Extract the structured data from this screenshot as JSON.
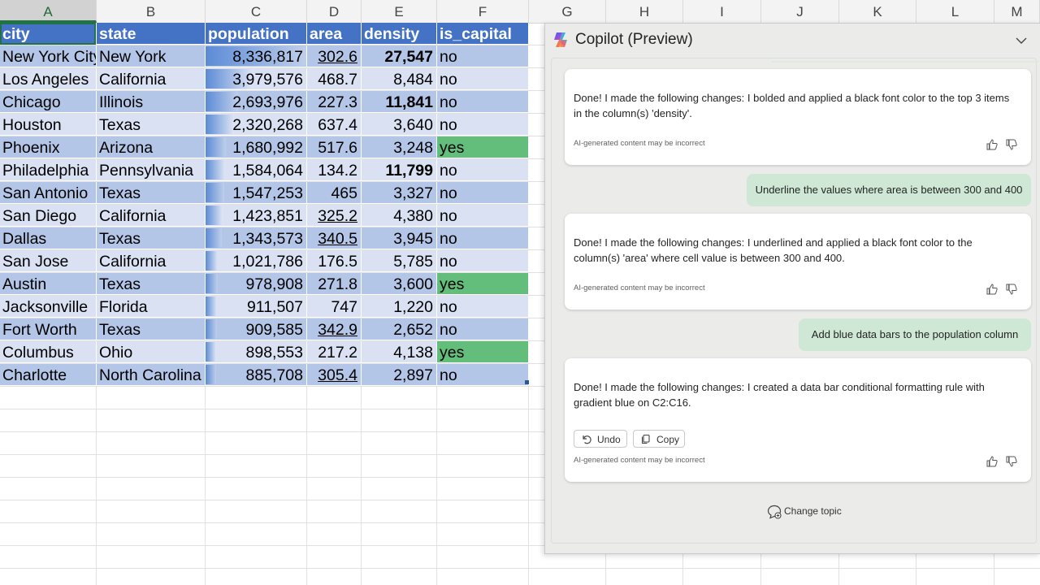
{
  "sheet": {
    "columns": [
      "A",
      "B",
      "C",
      "D",
      "E",
      "F",
      "G",
      "H",
      "I",
      "J",
      "K",
      "L",
      "M"
    ],
    "selected_column": "A",
    "headers": [
      "city",
      "state",
      "population",
      "area",
      "density",
      "is_capital"
    ],
    "rows": [
      {
        "city": "New York City",
        "state": "New York",
        "population": "8,336,817",
        "pop_value": 8336817,
        "area": "302.6",
        "density": "27,547",
        "is_capital": "no"
      },
      {
        "city": "Los Angeles",
        "state": "California",
        "population": "3,979,576",
        "pop_value": 3979576,
        "area": "468.7",
        "density": "8,484",
        "is_capital": "no"
      },
      {
        "city": "Chicago",
        "state": "Illinois",
        "population": "2,693,976",
        "pop_value": 2693976,
        "area": "227.3",
        "density": "11,841",
        "is_capital": "no"
      },
      {
        "city": "Houston",
        "state": "Texas",
        "population": "2,320,268",
        "pop_value": 2320268,
        "area": "637.4",
        "density": "3,640",
        "is_capital": "no"
      },
      {
        "city": "Phoenix",
        "state": "Arizona",
        "population": "1,680,992",
        "pop_value": 1680992,
        "area": "517.6",
        "density": "3,248",
        "is_capital": "yes"
      },
      {
        "city": "Philadelphia",
        "state": "Pennsylvania",
        "population": "1,584,064",
        "pop_value": 1584064,
        "area": "134.2",
        "density": "11,799",
        "is_capital": "no"
      },
      {
        "city": "San Antonio",
        "state": "Texas",
        "population": "1,547,253",
        "pop_value": 1547253,
        "area": "465",
        "density": "3,327",
        "is_capital": "no"
      },
      {
        "city": "San Diego",
        "state": "California",
        "population": "1,423,851",
        "pop_value": 1423851,
        "area": "325.2",
        "density": "4,380",
        "is_capital": "no"
      },
      {
        "city": "Dallas",
        "state": "Texas",
        "population": "1,343,573",
        "pop_value": 1343573,
        "area": "340.5",
        "density": "3,945",
        "is_capital": "no"
      },
      {
        "city": "San Jose",
        "state": "California",
        "population": "1,021,786",
        "pop_value": 1021786,
        "area": "176.5",
        "density": "5,785",
        "is_capital": "no"
      },
      {
        "city": "Austin",
        "state": "Texas",
        "population": "978,908",
        "pop_value": 978908,
        "area": "271.8",
        "density": "3,600",
        "is_capital": "yes"
      },
      {
        "city": "Jacksonville",
        "state": "Florida",
        "population": "911,507",
        "pop_value": 911507,
        "area": "747",
        "density": "1,220",
        "is_capital": "no"
      },
      {
        "city": "Fort Worth",
        "state": "Texas",
        "population": "909,585",
        "pop_value": 909585,
        "area": "342.9",
        "density": "2,652",
        "is_capital": "no"
      },
      {
        "city": "Columbus",
        "state": "Ohio",
        "population": "898,553",
        "pop_value": 898553,
        "area": "217.2",
        "density": "4,138",
        "is_capital": "yes"
      },
      {
        "city": "Charlotte",
        "state": "North Carolina",
        "population": "885,708",
        "pop_value": 885708,
        "area": "305.4",
        "density": "2,897",
        "is_capital": "no"
      }
    ],
    "colors": {
      "header_bg": "#4472c4",
      "band_dark": "#b4c6e7",
      "band_light": "#d9e1f2",
      "capital_yes": "#63be7b",
      "databar": "#5b8bd6"
    }
  },
  "copilot": {
    "title": "Copilot (Preview)",
    "messages": [
      {
        "role": "assistant",
        "text": "Done! I made the following changes: I bolded and applied a black font color to the top 3 items in the column(s) 'density'.",
        "disclaimer": "AI-generated content may be incorrect"
      },
      {
        "role": "user",
        "text": "Underline the values where area is between 300 and 400"
      },
      {
        "role": "assistant",
        "text": "Done! I made the following changes: I underlined and applied a black font color to the column(s) 'area' where cell value is between 300 and 400.",
        "disclaimer": "AI-generated content may be incorrect"
      },
      {
        "role": "user",
        "text": "Add blue data bars to the population column"
      },
      {
        "role": "assistant",
        "text": "Done! I made the following changes: I created a data bar conditional formatting rule with gradient blue on C2:C16.",
        "disclaimer": "AI-generated content may be incorrect",
        "undo_label": "Undo",
        "copy_label": "Copy"
      }
    ],
    "change_topic_label": "Change topic"
  }
}
